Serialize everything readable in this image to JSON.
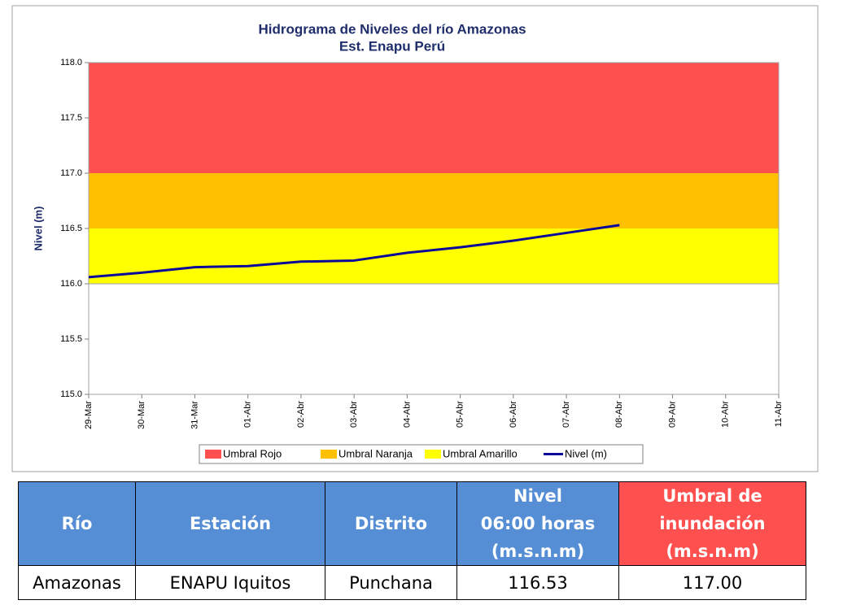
{
  "chart_data": {
    "type": "line",
    "title": [
      "Hidrograma de Niveles del río Amazonas",
      "Est. Enapu Perú"
    ],
    "y_label": "Nivel (m)",
    "categories": [
      "29-Mar",
      "30-Mar",
      "31-Mar",
      "01-Abr",
      "02-Abr",
      "03-Abr",
      "04-Abr",
      "05-Abr",
      "06-Abr",
      "07-Abr",
      "08-Abr",
      "09-Abr",
      "10-Abr",
      "11-Abr"
    ],
    "bands": [
      {
        "name": "Umbral Rojo",
        "color": "#ff5050",
        "from": 117,
        "to": 118
      },
      {
        "name": "Umbral Naranja",
        "color": "#ffc000",
        "from": 116.5,
        "to": 117
      },
      {
        "name": "Umbral Amarillo",
        "color": "#ffff00",
        "from": 116,
        "to": 116.5
      }
    ],
    "series": [
      {
        "name": "Nivel (m)",
        "color": "#0a0a9a",
        "values": [
          116.06,
          116.1,
          116.15,
          116.16,
          116.2,
          116.21,
          116.28,
          116.33,
          116.39,
          116.46,
          116.53,
          null,
          null,
          null
        ]
      }
    ],
    "ylim": [
      115,
      118
    ],
    "yticks": [
      {
        "value": 115,
        "label": "115.0"
      },
      {
        "value": 115.5,
        "label": "115.5"
      },
      {
        "value": 116,
        "label": "116.0"
      },
      {
        "value": 116.5,
        "label": "116.5"
      },
      {
        "value": 117,
        "label": "117.0"
      },
      {
        "value": 117.5,
        "label": "117.5"
      },
      {
        "value": 118,
        "label": "118.0"
      }
    ],
    "legend": "bottom"
  },
  "table": {
    "header": [
      [
        "Río"
      ],
      [
        "Estación"
      ],
      [
        "Distrito"
      ],
      [
        "Nivel",
        "06:00 horas",
        "(m.s.n.m)"
      ],
      [
        "Umbral de",
        "inundación",
        "(m.s.n.m)"
      ]
    ],
    "rows": [
      [
        "Amazonas",
        "ENAPU Iquitos",
        "Punchana",
        "116.53",
        "117.00"
      ]
    ]
  }
}
